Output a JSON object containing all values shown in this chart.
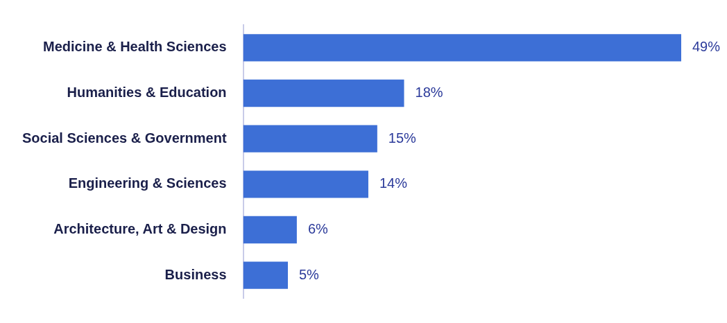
{
  "chart_data": {
    "type": "bar",
    "orientation": "horizontal",
    "categories": [
      "Medicine & Health Sciences",
      "Humanities & Education",
      "Social Sciences & Government",
      "Engineering & Sciences",
      "Architecture, Art & Design",
      "Business"
    ],
    "values": [
      49,
      18,
      15,
      14,
      6,
      5
    ],
    "value_labels": [
      "49%",
      "18%",
      "15%",
      "14%",
      "6%",
      "5%"
    ],
    "color": "#3d6fd6"
  }
}
